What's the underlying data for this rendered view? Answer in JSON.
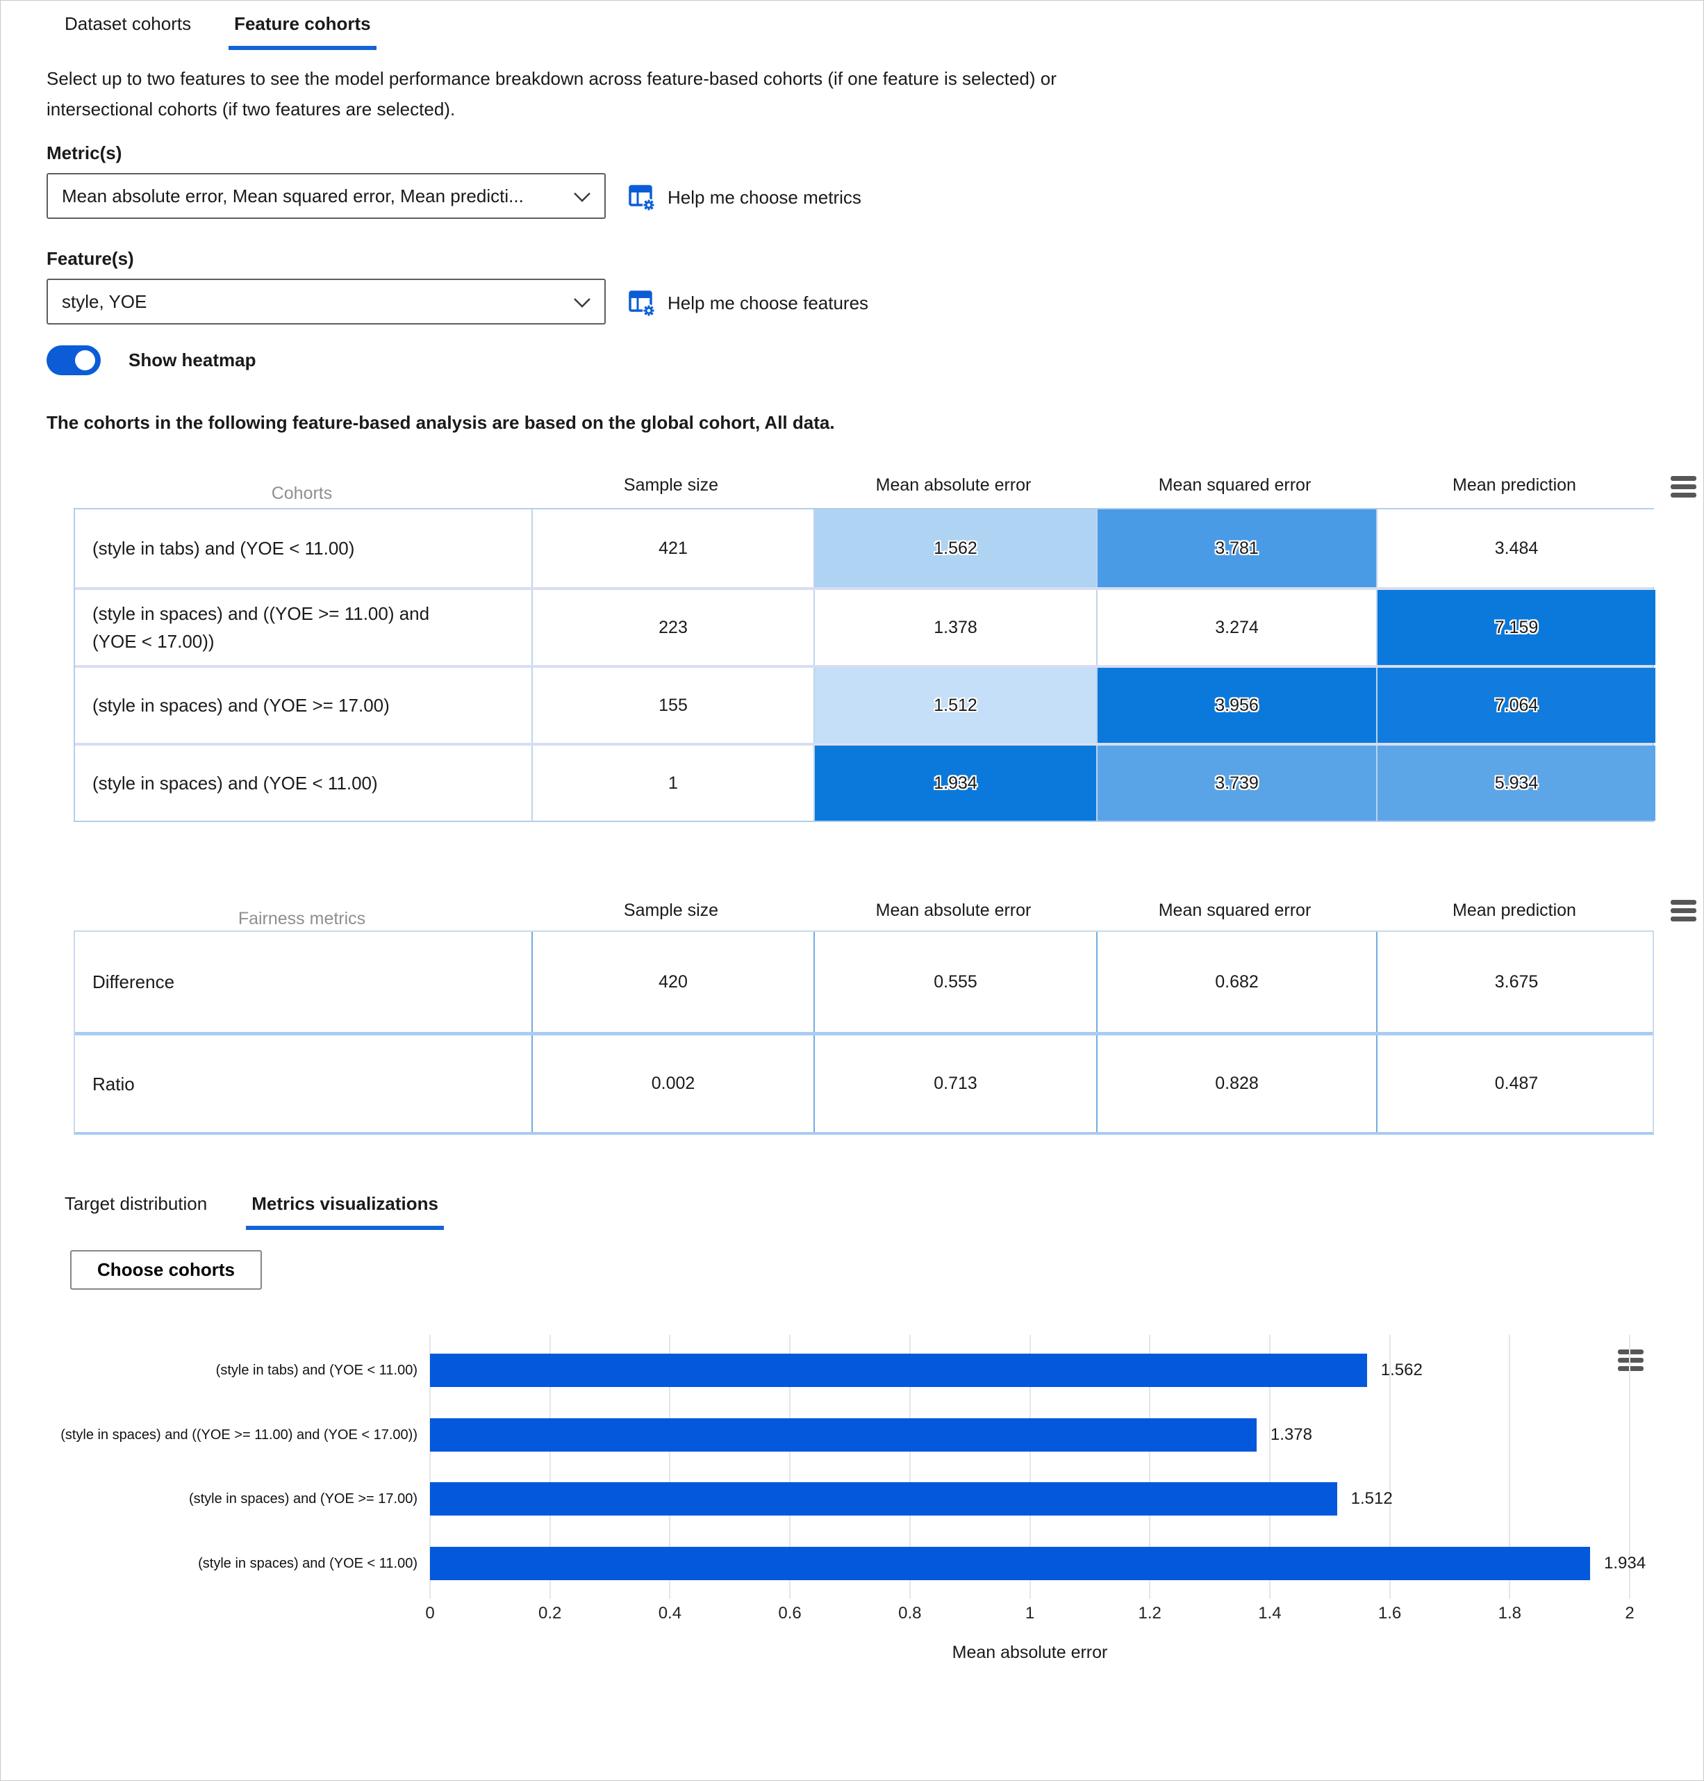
{
  "colors": {
    "accent": "#1464d8",
    "bar": "#0358dc",
    "toggle-on": "#0b5cd6",
    "help-icon": "#0b5dd6",
    "header-gray": "#8f8f8f",
    "grid-line": "#e6e6e6",
    "hamburger": "#575757"
  },
  "icons": {
    "dropdown": "chevron-down-icon",
    "help_links": "table-settings-icon",
    "table_menus": "hamburger-menu-icon",
    "chart_menu": "hamburger-menu-icon"
  },
  "top_tabs": {
    "items": [
      {
        "label": "Dataset cohorts",
        "active": false
      },
      {
        "label": "Feature cohorts",
        "active": true
      }
    ]
  },
  "description": "Select up to two features to see the model performance breakdown across feature-based cohorts (if one feature is selected) or intersectional cohorts (if two features are selected).",
  "metrics_field": {
    "label": "Metric(s)",
    "value": "Mean absolute error, Mean squared error, Mean predicti...",
    "help_label": "Help me choose metrics"
  },
  "features_field": {
    "label": "Feature(s)",
    "value": "style, YOE",
    "help_label": "Help me choose features"
  },
  "heatmap_toggle": {
    "label": "Show heatmap",
    "state": "on"
  },
  "global_cohort_note": "The cohorts in the following feature-based analysis are based on the global cohort, All data.",
  "metric_columns": [
    "Sample size",
    "Mean absolute error",
    "Mean squared error",
    "Mean prediction"
  ],
  "cohorts_table": {
    "first_column_header": "Cohorts",
    "rows": [
      {
        "label": "(style in tabs) and (YOE < 11.00)",
        "sample_size": "421",
        "metrics": [
          1.562,
          3.781,
          3.484
        ]
      },
      {
        "label": "(style in spaces) and ((YOE >= 11.00) and (YOE < 17.00))",
        "sample_size": "223",
        "metrics": [
          1.378,
          3.274,
          7.159
        ]
      },
      {
        "label": "(style in spaces) and (YOE >= 17.00)",
        "sample_size": "155",
        "metrics": [
          1.512,
          3.956,
          7.064
        ]
      },
      {
        "label": "(style in spaces) and (YOE < 11.00)",
        "sample_size": "1",
        "metrics": [
          1.934,
          3.739,
          5.934
        ]
      }
    ]
  },
  "heatmap": {
    "enabled": true,
    "min_color": "#ffffff",
    "max_color": "#0b79dc",
    "column_ranges": [
      [
        1.378,
        1.934
      ],
      [
        3.274,
        3.956
      ],
      [
        3.484,
        7.159
      ]
    ]
  },
  "fairness_table": {
    "first_column_header": "Fairness metrics",
    "rows": [
      {
        "label": "Difference",
        "values": [
          "420",
          "0.555",
          "0.682",
          "3.675"
        ]
      },
      {
        "label": "Ratio",
        "values": [
          "0.002",
          "0.713",
          "0.828",
          "0.487"
        ]
      }
    ]
  },
  "bottom_tabs": {
    "items": [
      {
        "label": "Target distribution",
        "active": false
      },
      {
        "label": "Metrics visualizations",
        "active": true
      }
    ]
  },
  "choose_cohorts_button": "Choose cohorts",
  "chart_data": {
    "type": "bar",
    "orientation": "horizontal",
    "categories": [
      "(style in tabs) and (YOE < 11.00)",
      "(style in spaces) and ((YOE >= 11.00) and (YOE < 17.00))",
      "(style in spaces) and (YOE >= 17.00)",
      "(style in spaces) and (YOE < 11.00)"
    ],
    "values": [
      1.562,
      1.378,
      1.512,
      1.934
    ],
    "value_labels": [
      "1.562",
      "1.378",
      "1.512",
      "1.934"
    ],
    "xlabel": "Mean absolute error",
    "xlim": [
      0,
      2
    ],
    "xticks": [
      0,
      0.2,
      0.4,
      0.6,
      0.8,
      1,
      1.2,
      1.4,
      1.6,
      1.8,
      2
    ],
    "grid": true,
    "legend": "none",
    "bar_color": "#0358dc"
  }
}
